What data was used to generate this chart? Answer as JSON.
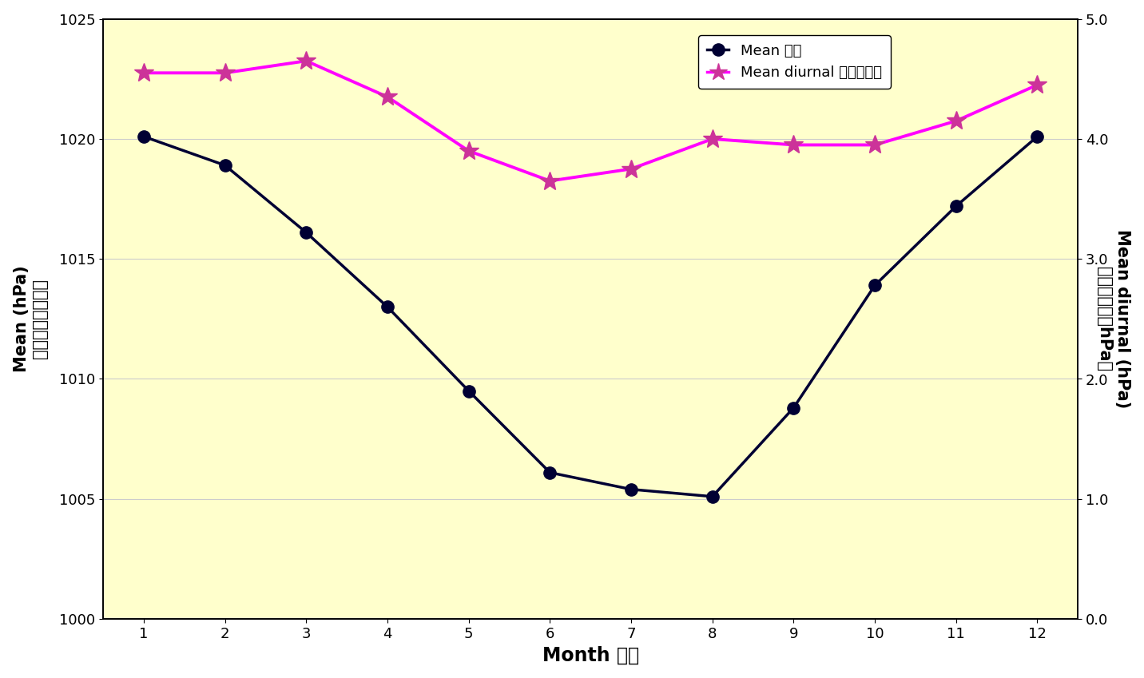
{
  "months": [
    1,
    2,
    3,
    4,
    5,
    6,
    7,
    8,
    9,
    10,
    11,
    12
  ],
  "mean_pressure": [
    1020.1,
    1018.9,
    1016.1,
    1013.0,
    1009.5,
    1006.1,
    1005.4,
    1005.1,
    1008.8,
    1013.9,
    1017.2,
    1020.1
  ],
  "mean_diurnal": [
    4.55,
    4.55,
    4.65,
    4.35,
    3.9,
    3.65,
    3.75,
    4.0,
    3.95,
    3.95,
    4.15,
    4.45
  ],
  "left_ylim": [
    1000,
    1025
  ],
  "left_yticks": [
    1000,
    1005,
    1010,
    1015,
    1020,
    1025
  ],
  "right_ylim": [
    0.0,
    5.0
  ],
  "right_yticks": [
    0.0,
    1.0,
    2.0,
    3.0,
    4.0,
    5.0
  ],
  "xlabel": "Month 月份",
  "ylabel_left_en": "Mean (hPa)",
  "ylabel_left_zh": "平均（百帕斯卡）",
  "ylabel_right_en": "Mean diurnal (hPa)",
  "ylabel_right_zh": "平均日较差（hPa）",
  "legend_mean": "Mean 平均",
  "legend_diurnal": "Mean diurnal 平均日较差",
  "background_color": "#ffffcc",
  "mean_line_color": "#000033",
  "diurnal_line_color": "#ff00ff",
  "mean_marker_color": "#000033",
  "diurnal_marker_color": "#cc3399",
  "grid_color": "#cccccc",
  "axis_label_fontsize": 15,
  "tick_fontsize": 13,
  "legend_fontsize": 13,
  "xlabel_fontsize": 17
}
